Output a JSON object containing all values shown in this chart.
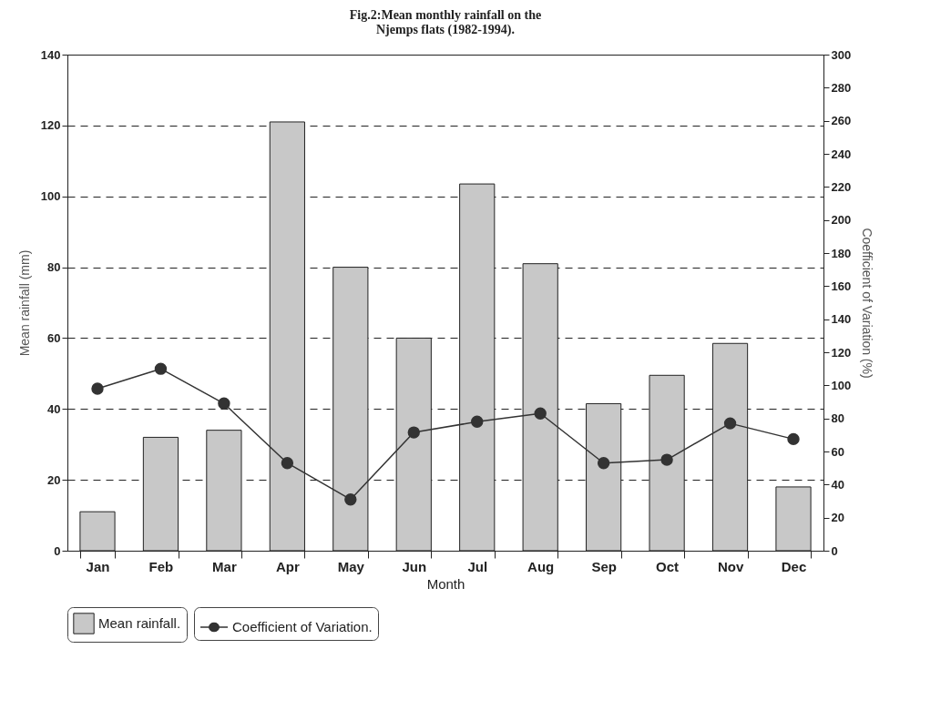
{
  "chart_data": {
    "type": "bar",
    "title": "Fig.2:Mean monthly rainfall on the\nNjemps flats (1982-1994).",
    "xlabel": "Month",
    "ylabel": "Mean rainfall (mm)",
    "y2label": "Coefficient of Variation (%)",
    "categories": [
      "Jan",
      "Feb",
      "Mar",
      "Apr",
      "May",
      "Jun",
      "Jul",
      "Aug",
      "Sep",
      "Oct",
      "Nov",
      "Dec"
    ],
    "series": [
      {
        "name": "Mean rainfall.",
        "color": "#c8c8c8",
        "values": [
          11,
          32,
          34,
          121,
          80,
          60,
          103.5,
          81,
          41.5,
          49.5,
          58.5,
          18
        ]
      },
      {
        "name": "Coefficient of Variation.",
        "type": "line",
        "axis": "y2",
        "color": "#333333",
        "marker": "circle",
        "values": [
          98,
          110,
          89,
          53,
          31,
          71.5,
          78,
          83,
          53,
          55,
          77,
          67.5
        ]
      }
    ],
    "ylim": [
      0,
      140
    ],
    "yticks": [
      0,
      20,
      40,
      60,
      80,
      100,
      120,
      140
    ],
    "y2lim": [
      0,
      300
    ],
    "y2ticks": [
      0,
      20,
      40,
      60,
      80,
      100,
      120,
      140,
      160,
      180,
      200,
      220,
      240,
      260,
      280,
      300
    ],
    "grid": "y",
    "legend": "bottom"
  }
}
